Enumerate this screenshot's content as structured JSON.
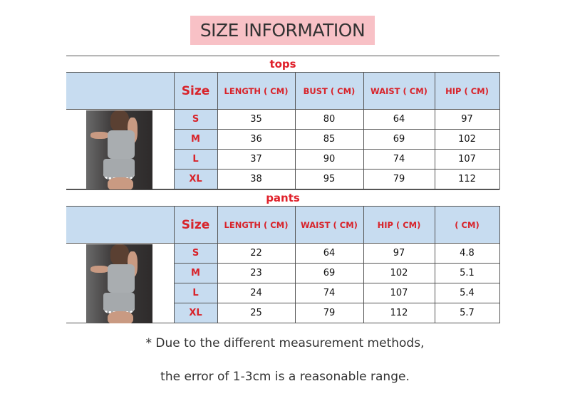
{
  "title": "SIZE INFORMATION",
  "tops": {
    "section": "tops",
    "headers": [
      "Size",
      "LENGTH ( CM)",
      "BUST ( CM)",
      "WAIST ( CM)",
      "HIP ( CM)"
    ],
    "rows": [
      [
        "S",
        "35",
        "80",
        "64",
        "97"
      ],
      [
        "M",
        "36",
        "85",
        "69",
        "102"
      ],
      [
        "L",
        "37",
        "90",
        "74",
        "107"
      ],
      [
        "XL",
        "38",
        "95",
        "79",
        "112"
      ]
    ]
  },
  "pants": {
    "section": "pants",
    "headers": [
      "Size",
      "LENGTH ( CM)",
      "WAIST ( CM)",
      "HIP ( CM)",
      "( CM)"
    ],
    "rows": [
      [
        "S",
        "22",
        "64",
        "97",
        "4.8"
      ],
      [
        "M",
        "23",
        "69",
        "102",
        "5.1"
      ],
      [
        "L",
        "24",
        "74",
        "107",
        "5.4"
      ],
      [
        "XL",
        "25",
        "79",
        "112",
        "5.7"
      ]
    ]
  },
  "notes": [
    "* Due to the different measurement methods,",
    "the error of 1-3cm is a reasonable range."
  ],
  "colors": {
    "title_bg": "#f8c1c6",
    "header_bg": "#c7dcf0",
    "header_text": "#d8232a"
  }
}
